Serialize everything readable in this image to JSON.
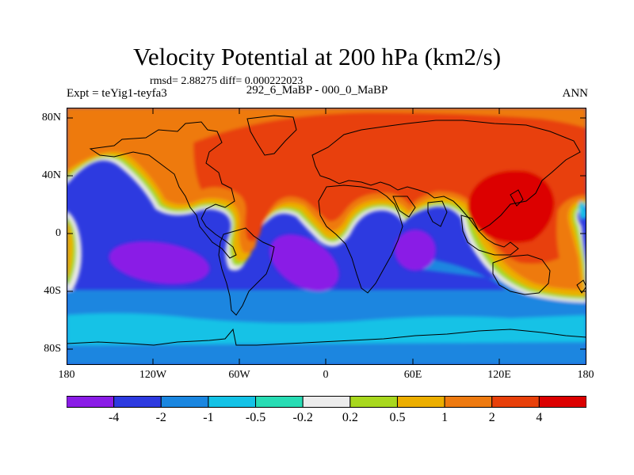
{
  "title": "Velocity Potential at 200 hPa (km2/s)",
  "stats_line": "rmsd= 2.88275 diff= 0.000222023",
  "experiment_label": "Expt = teYig1-teyfa3",
  "cases_label": "292_6_MaBP - 000_0_MaBP",
  "season_label": "ANN",
  "lat_ticks": [
    "80N",
    "40N",
    "0",
    "40S",
    "80S"
  ],
  "lon_ticks": [
    "180",
    "120W",
    "60W",
    "0",
    "60E",
    "120E",
    "180"
  ],
  "colorbar": {
    "labels": [
      "-4",
      "-2",
      "-1",
      "-0.5",
      "-0.2",
      "0.2",
      "0.5",
      "1",
      "2",
      "4"
    ],
    "colors": [
      "#8a1ce6",
      "#2d3ae0",
      "#1a86e0",
      "#14c2e6",
      "#28dcb4",
      "#ececec",
      "#a8d81e",
      "#ecae00",
      "#ee7a10",
      "#e8400a",
      "#dc0000"
    ]
  }
}
